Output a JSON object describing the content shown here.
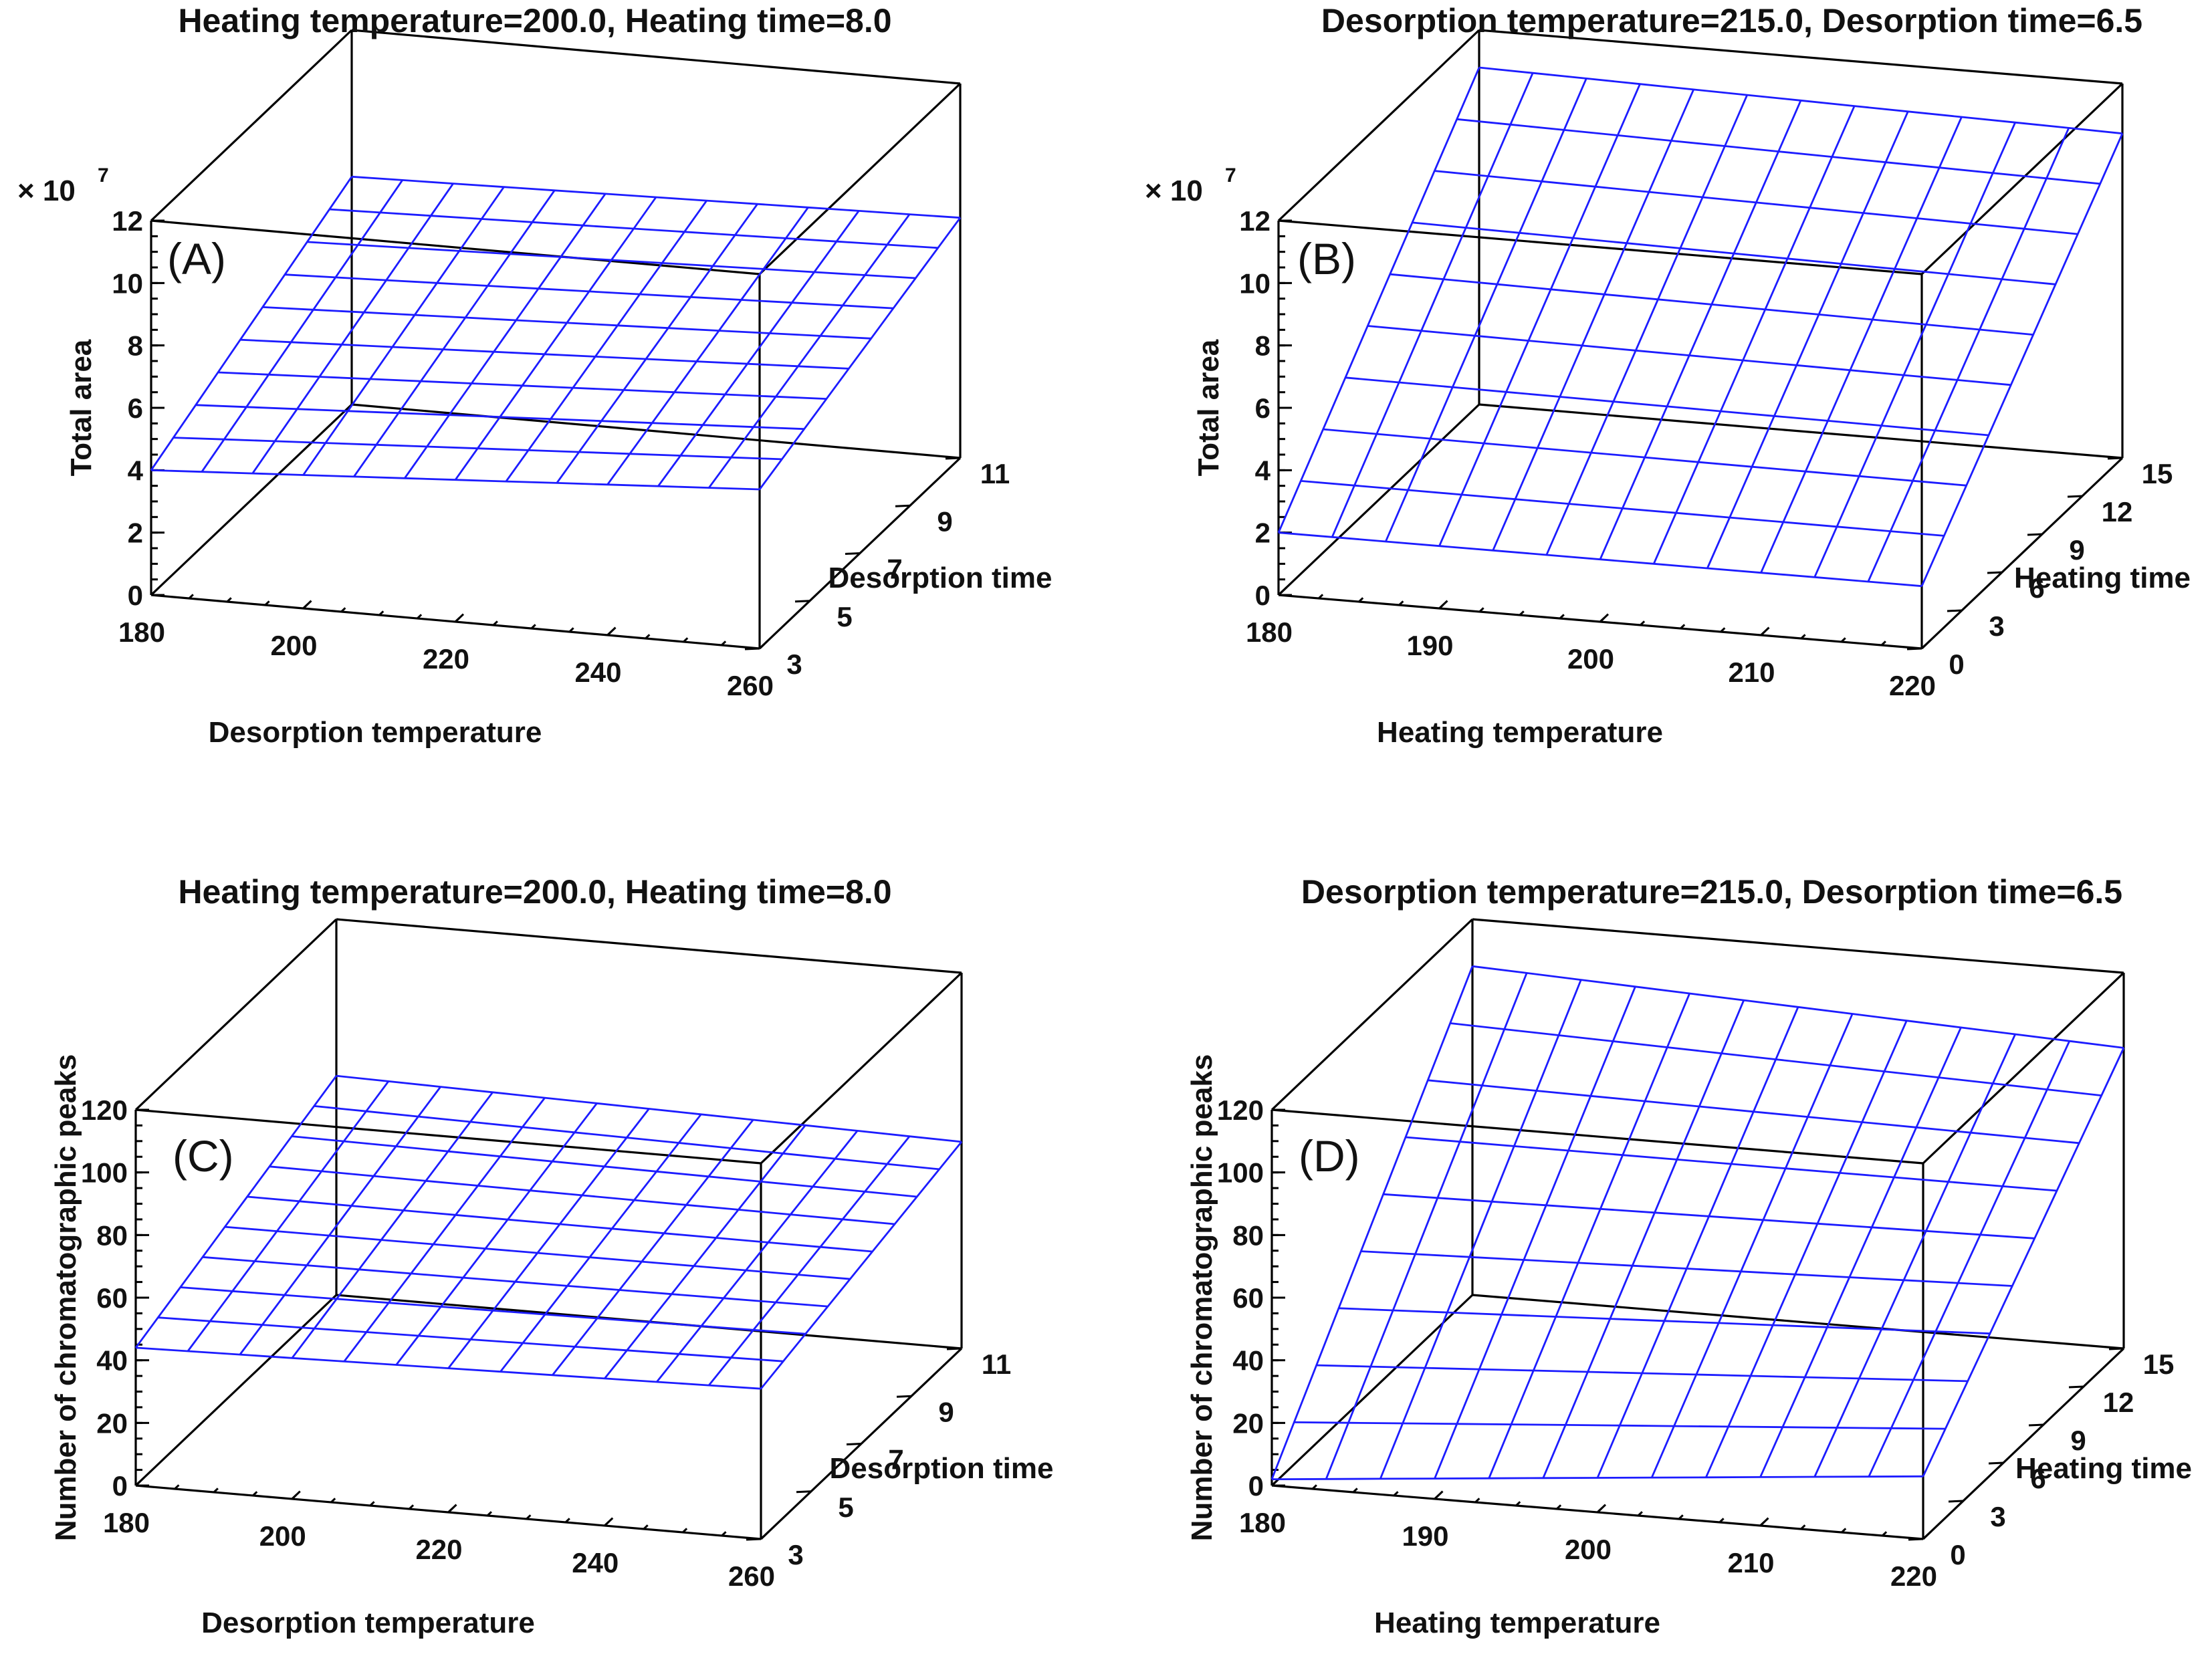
{
  "chart_data": [
    {
      "type": "surface",
      "panel_label": "(A)",
      "title": "Heating temperature=200.0, Heating time=8.0",
      "xlabel": "Desorption temperature",
      "ylabel": "Desorption time",
      "zlabel": "Total area",
      "z_scale_label": "× 10",
      "z_scale_exp": "7",
      "xlim": [
        180,
        260
      ],
      "ylim": [
        3,
        11
      ],
      "zlim": [
        0,
        12
      ],
      "xticks": [
        "180",
        "200",
        "220",
        "240",
        "260"
      ],
      "yticks": [
        "3",
        "5",
        "7",
        "9",
        "11"
      ],
      "zticks": [
        "0",
        "2",
        "4",
        "6",
        "8",
        "10",
        "12"
      ],
      "grid_n": 9,
      "corner_values": {
        "x_min_y_min": 4.0,
        "x_max_y_min": 5.1,
        "x_min_y_max": 7.3,
        "x_max_y_max": 7.7
      }
    },
    {
      "type": "surface",
      "panel_label": "(B)",
      "title": "Desorption temperature=215.0, Desorption time=6.5",
      "xlabel": "Heating temperature",
      "ylabel": "Heating time",
      "zlabel": "Total area",
      "z_scale_label": "× 10",
      "z_scale_exp": "7",
      "xlim": [
        180,
        220
      ],
      "ylim": [
        0,
        15
      ],
      "zlim": [
        0,
        12
      ],
      "xticks": [
        "180",
        "190",
        "200",
        "210",
        "220"
      ],
      "yticks": [
        "0",
        "3",
        "6",
        "9",
        "12",
        "15"
      ],
      "zticks": [
        "0",
        "2",
        "4",
        "6",
        "8",
        "10",
        "12"
      ],
      "grid_n": 9,
      "corner_values": {
        "x_min_y_min": 2.0,
        "x_max_y_min": 2.0,
        "x_min_y_max": 10.8,
        "x_max_y_max": 10.4
      }
    },
    {
      "type": "surface",
      "panel_label": "(C)",
      "title": "Heating temperature=200.0, Heating time=8.0",
      "xlabel": "Desorption temperature",
      "ylabel": "Desorption time",
      "zlabel": "Number of chromatographic peaks",
      "z_scale_label": "",
      "z_scale_exp": "",
      "xlim": [
        180,
        260
      ],
      "ylim": [
        3,
        11
      ],
      "zlim": [
        0,
        120
      ],
      "xticks": [
        "180",
        "200",
        "220",
        "240",
        "260"
      ],
      "yticks": [
        "3",
        "5",
        "7",
        "9",
        "11"
      ],
      "zticks": [
        "0",
        "20",
        "40",
        "60",
        "80",
        "100",
        "120"
      ],
      "grid_n": 9,
      "corner_values": {
        "x_min_y_min": 44,
        "x_max_y_min": 48,
        "x_min_y_max": 70,
        "x_max_y_max": 66
      }
    },
    {
      "type": "surface",
      "panel_label": "(D)",
      "title": "Desorption temperature=215.0, Desorption time=6.5",
      "xlabel": "Heating temperature",
      "ylabel": "Heating time",
      "zlabel": "Number of chromatographic peaks",
      "z_scale_label": "",
      "z_scale_exp": "",
      "xlim": [
        180,
        220
      ],
      "ylim": [
        0,
        15
      ],
      "zlim": [
        0,
        120
      ],
      "xticks": [
        "180",
        "190",
        "200",
        "210",
        "220"
      ],
      "yticks": [
        "0",
        "3",
        "6",
        "9",
        "12",
        "15"
      ],
      "zticks": [
        "0",
        "20",
        "40",
        "60",
        "80",
        "100",
        "120"
      ],
      "grid_n": 9,
      "corner_values": {
        "x_min_y_min": 2,
        "x_max_y_min": 20,
        "x_min_y_max": 105,
        "x_max_y_max": 96
      }
    }
  ]
}
